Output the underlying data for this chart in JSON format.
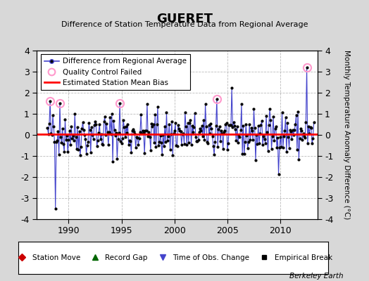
{
  "title": "GUERET",
  "subtitle": "Difference of Station Temperature Data from Regional Average",
  "ylabel": "Monthly Temperature Anomaly Difference (°C)",
  "xlabel_ticks": [
    1990,
    1995,
    2000,
    2005,
    2010
  ],
  "ylim": [
    -4,
    4
  ],
  "xlim": [
    1987.0,
    2013.5
  ],
  "bias_value": 0.05,
  "background_color": "#d8d8d8",
  "plot_bg_color": "#ffffff",
  "grid_color": "#bbbbbb",
  "line_color": "#4444cc",
  "marker_color": "#000000",
  "bias_color": "#ff0000",
  "qc_fail_color": "#ff99cc",
  "berkeley_earth_text": "Berkeley Earth",
  "seed": 42,
  "start_year": 1988.0,
  "end_year": 2013.2,
  "yticks": [
    -4,
    -3,
    -2,
    -1,
    0,
    1,
    2,
    3,
    4
  ],
  "obs_change_year": 1988.75,
  "large_neg_year": 1988.75,
  "large_neg_val": -3.5,
  "qc_years": [
    1988.3,
    1989.2,
    1994.9,
    2004.0,
    2012.5
  ],
  "qc_vals": [
    1.6,
    1.5,
    1.5,
    1.7,
    3.2
  ]
}
